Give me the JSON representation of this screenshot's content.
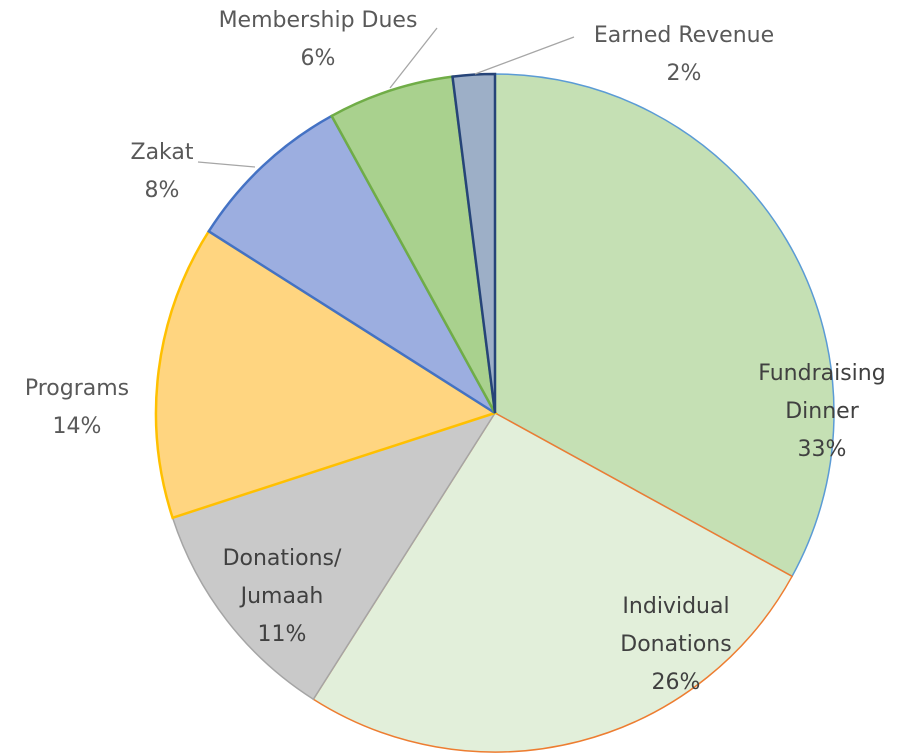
{
  "chart_data": {
    "type": "pie",
    "categories": [
      "Fundraising Dinner",
      "Individual Donations",
      "Donations/ Jumaah",
      "Programs",
      "Zakat",
      "Membership Dues",
      "Earned Revenue"
    ],
    "values": [
      33,
      26,
      11,
      14,
      8,
      6,
      2
    ],
    "value_labels": [
      "33%",
      "26%",
      "11%",
      "14%",
      "8%",
      "6%",
      "2%"
    ],
    "colors": [
      "#c5e0b4",
      "#e2efda",
      "#c9c9c9",
      "#ffd580",
      "#9caee0",
      "#a9d18e",
      "#9dafc7"
    ],
    "edge_colors": [
      "#5b9bd5",
      "#ed7d31",
      "#a5a5a5",
      "#ffc000",
      "#4472c4",
      "#70ad47",
      "#264478"
    ]
  }
}
